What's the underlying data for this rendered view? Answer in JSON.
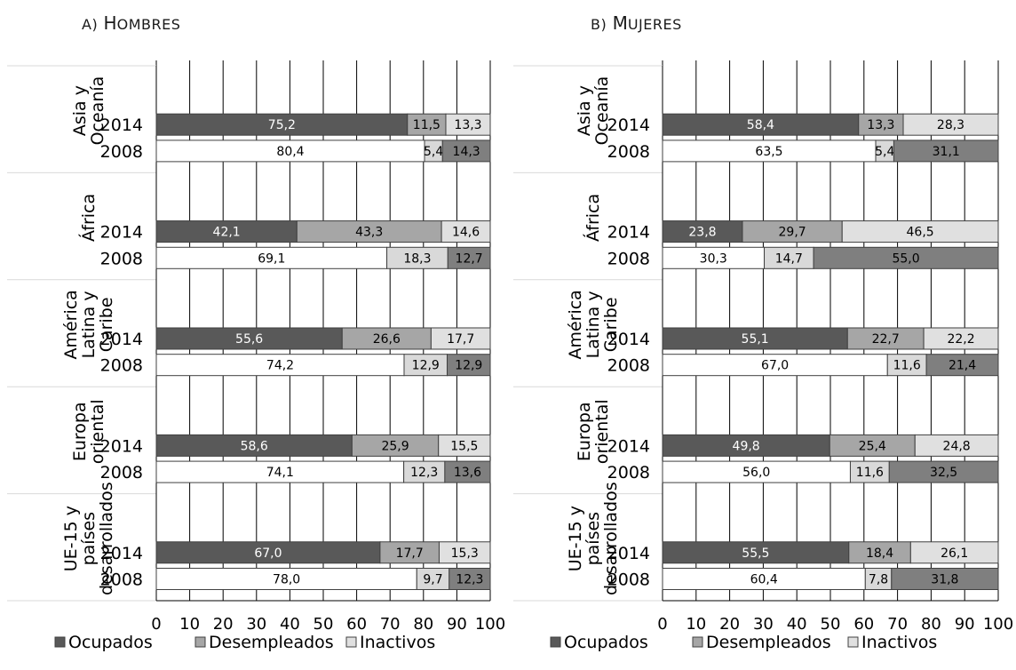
{
  "title_a": {
    "prefix": "A)",
    "cap": "H",
    "rest": "OMBRES"
  },
  "title_b": {
    "prefix": "B)",
    "cap": "M",
    "rest": "UJERES"
  },
  "colors": {
    "ocupados_2014": "#595959",
    "desempleados_2014": "#a6a6a6",
    "inactivos_2014": "#e0e0e0",
    "ocupados_2008": "#ffffff",
    "desempleados_2008": "#d9d9d9",
    "inactivos_2008": "#7f7f7f"
  },
  "chart_data": [
    {
      "type": "bar",
      "orientation": "horizontal",
      "stacked": true,
      "title": "A) Hombres",
      "xlim": [
        0,
        100
      ],
      "xticks": [
        0,
        10,
        20,
        30,
        40,
        50,
        60,
        70,
        80,
        90,
        100
      ],
      "legend": [
        {
          "label": "Ocupados"
        },
        {
          "label": "Desempleados"
        },
        {
          "label": "Inactivos"
        }
      ],
      "legend_position": "bottom",
      "groups": [
        {
          "name": "Asia y Oceanía",
          "lines": [
            "Asia y",
            "Oceanía"
          ],
          "rows": [
            {
              "year": "2014",
              "values": [
                75.2,
                11.5,
                13.3
              ],
              "labels": [
                "75,2",
                "11,5",
                "13,3"
              ]
            },
            {
              "year": "2008",
              "values": [
                80.4,
                5.4,
                14.3
              ],
              "labels": [
                "80,4",
                "5,4",
                "14,3"
              ]
            }
          ]
        },
        {
          "name": "África",
          "lines": [
            "África"
          ],
          "rows": [
            {
              "year": "2014",
              "values": [
                42.1,
                43.3,
                14.6
              ],
              "labels": [
                "42,1",
                "43,3",
                "14,6"
              ]
            },
            {
              "year": "2008",
              "values": [
                69.1,
                18.3,
                12.7
              ],
              "labels": [
                "69,1",
                "18,3",
                "12,7"
              ]
            }
          ]
        },
        {
          "name": "América Latina y Caribe",
          "lines": [
            "América",
            "Latina y",
            "Caribe"
          ],
          "rows": [
            {
              "year": "2014",
              "values": [
                55.6,
                26.6,
                17.7
              ],
              "labels": [
                "55,6",
                "26,6",
                "17,7"
              ]
            },
            {
              "year": "2008",
              "values": [
                74.2,
                12.9,
                12.9
              ],
              "labels": [
                "74,2",
                "12,9",
                "12,9"
              ]
            }
          ]
        },
        {
          "name": "Europa oriental",
          "lines": [
            "Europa",
            "oriental"
          ],
          "rows": [
            {
              "year": "2014",
              "values": [
                58.6,
                25.9,
                15.5
              ],
              "labels": [
                "58,6",
                "25,9",
                "15,5"
              ]
            },
            {
              "year": "2008",
              "values": [
                74.1,
                12.3,
                13.6
              ],
              "labels": [
                "74,1",
                "12,3",
                "13,6"
              ]
            }
          ]
        },
        {
          "name": "UE-15 y países desarrollados",
          "lines": [
            "UE-15 y",
            "países",
            "desarrollados"
          ],
          "rows": [
            {
              "year": "2014",
              "values": [
                67.0,
                17.7,
                15.3
              ],
              "labels": [
                "67,0",
                "17,7",
                "15,3"
              ]
            },
            {
              "year": "2008",
              "values": [
                78.0,
                9.7,
                12.3
              ],
              "labels": [
                "78,0",
                "9,7",
                "12,3"
              ]
            }
          ]
        }
      ]
    },
    {
      "type": "bar",
      "orientation": "horizontal",
      "stacked": true,
      "title": "B) Mujeres",
      "xlim": [
        0,
        100
      ],
      "xticks": [
        0,
        10,
        20,
        30,
        40,
        50,
        60,
        70,
        80,
        90,
        100
      ],
      "legend": [
        {
          "label": "Ocupados"
        },
        {
          "label": "Desempleados"
        },
        {
          "label": "Inactivos"
        }
      ],
      "legend_position": "bottom",
      "groups": [
        {
          "name": "Asia y Oceanía",
          "lines": [
            "Asia y",
            "Oceanía"
          ],
          "rows": [
            {
              "year": "2014",
              "values": [
                58.4,
                13.3,
                28.3
              ],
              "labels": [
                "58,4",
                "13,3",
                "28,3"
              ]
            },
            {
              "year": "2008",
              "values": [
                63.5,
                5.4,
                31.1
              ],
              "labels": [
                "63,5",
                "5,4",
                "31,1"
              ]
            }
          ]
        },
        {
          "name": "África",
          "lines": [
            "África"
          ],
          "rows": [
            {
              "year": "2014",
              "values": [
                23.8,
                29.7,
                46.5
              ],
              "labels": [
                "23,8",
                "29,7",
                "46,5"
              ]
            },
            {
              "year": "2008",
              "values": [
                30.3,
                14.7,
                55.0
              ],
              "labels": [
                "30,3",
                "14,7",
                "55,0"
              ]
            }
          ]
        },
        {
          "name": "América Latina y Caribe",
          "lines": [
            "América",
            "Latina y",
            "Caribe"
          ],
          "rows": [
            {
              "year": "2014",
              "values": [
                55.1,
                22.7,
                22.2
              ],
              "labels": [
                "55,1",
                "22,7",
                "22,2"
              ]
            },
            {
              "year": "2008",
              "values": [
                67.0,
                11.6,
                21.4
              ],
              "labels": [
                "67,0",
                "11,6",
                "21,4"
              ]
            }
          ]
        },
        {
          "name": "Europa oriental",
          "lines": [
            "Europa",
            "oriental"
          ],
          "rows": [
            {
              "year": "2014",
              "values": [
                49.8,
                25.4,
                24.8
              ],
              "labels": [
                "49,8",
                "25,4",
                "24,8"
              ]
            },
            {
              "year": "2008",
              "values": [
                56.0,
                11.6,
                32.5
              ],
              "labels": [
                "56,0",
                "11,6",
                "32,5"
              ]
            }
          ]
        },
        {
          "name": "UE-15 y países desarrollados",
          "lines": [
            "UE-15 y",
            "países",
            "desarrollados"
          ],
          "rows": [
            {
              "year": "2014",
              "values": [
                55.5,
                18.4,
                26.1
              ],
              "labels": [
                "55,5",
                "18,4",
                "26,1"
              ]
            },
            {
              "year": "2008",
              "values": [
                60.4,
                7.8,
                31.8
              ],
              "labels": [
                "60,4",
                "7,8",
                "31,8"
              ]
            }
          ]
        }
      ]
    }
  ]
}
